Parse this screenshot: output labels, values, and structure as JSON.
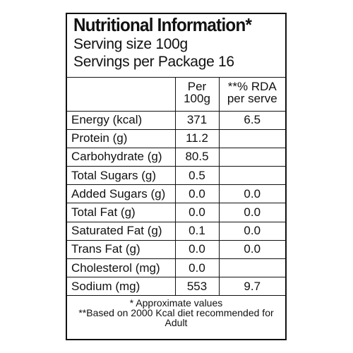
{
  "label": {
    "title": "Nutritional Information*",
    "serving_size": "Serving size 100g",
    "servings_per_package": "Servings per Package 16"
  },
  "table": {
    "headers": [
      "",
      "Per 100g",
      "**% RDA per serve"
    ],
    "rows": [
      {
        "name": "Energy (kcal)",
        "per100g": "371",
        "rda": "6.5"
      },
      {
        "name": "Protein (g)",
        "per100g": "11.2",
        "rda": ""
      },
      {
        "name": "Carbohydrate (g)",
        "per100g": "80.5",
        "rda": ""
      },
      {
        "name": "Total Sugars (g)",
        "per100g": "0.5",
        "rda": ""
      },
      {
        "name": "Added Sugars (g)",
        "per100g": "0.0",
        "rda": "0.0"
      },
      {
        "name": "Total Fat (g)",
        "per100g": "0.0",
        "rda": "0.0"
      },
      {
        "name": "Saturated Fat (g)",
        "per100g": "0.1",
        "rda": "0.0"
      },
      {
        "name": "Trans Fat (g)",
        "per100g": "0.0",
        "rda": "0.0"
      },
      {
        "name": "Cholesterol (mg)",
        "per100g": "0.0",
        "rda": ""
      },
      {
        "name": "Sodium (mg)",
        "per100g": "553",
        "rda": "9.7"
      }
    ]
  },
  "footnotes": [
    "* Approximate values",
    "**Based on 2000 Kcal diet recommended for Adult"
  ]
}
